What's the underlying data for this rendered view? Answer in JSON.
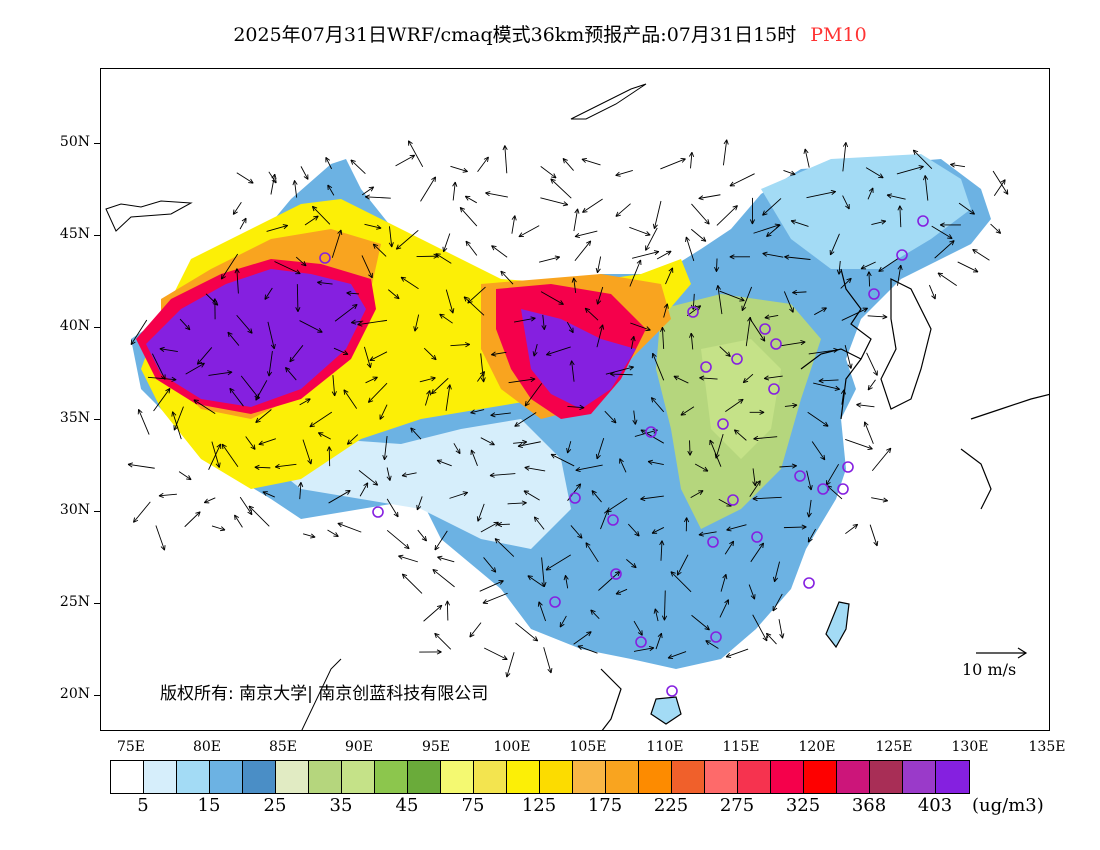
{
  "title": {
    "main": "2025年07月31日WRF/cmaq模式36km预报产品:07月31日15时",
    "variable": "PM10",
    "variable_color": "#ff3333"
  },
  "axes": {
    "lat_labels": [
      "50N",
      "45N",
      "40N",
      "35N",
      "30N",
      "25N",
      "20N"
    ],
    "lon_labels": [
      "75E",
      "80E",
      "85E",
      "90E",
      "95E",
      "100E",
      "105E",
      "110E",
      "115E",
      "120E",
      "125E",
      "130E",
      "135E"
    ]
  },
  "copyright": "版权所有: 南京大学| 南京创蓝科技有限公司",
  "scale_label": "10 m/s",
  "colorbar": {
    "colors": [
      "#ffffff",
      "#d6eefb",
      "#a3dbf5",
      "#6cb2e3",
      "#4a8ec6",
      "#e1ebc3",
      "#b5d67d",
      "#c5e288",
      "#8cc64d",
      "#6aab3a",
      "#f4f971",
      "#f3e44f",
      "#fcef06",
      "#fcdc00",
      "#f9b646",
      "#f9a41f",
      "#fd8b00",
      "#f0602b",
      "#fe6a6a",
      "#f6334f",
      "#f5004b",
      "#fe0000",
      "#cc157a",
      "#a82e56",
      "#9a3ac9",
      "#8520e0"
    ],
    "labels": [
      "5",
      "15",
      "25",
      "35",
      "45",
      "75",
      "125",
      "175",
      "225",
      "275",
      "325",
      "368",
      "403"
    ],
    "unit": "(ug/m3)"
  }
}
